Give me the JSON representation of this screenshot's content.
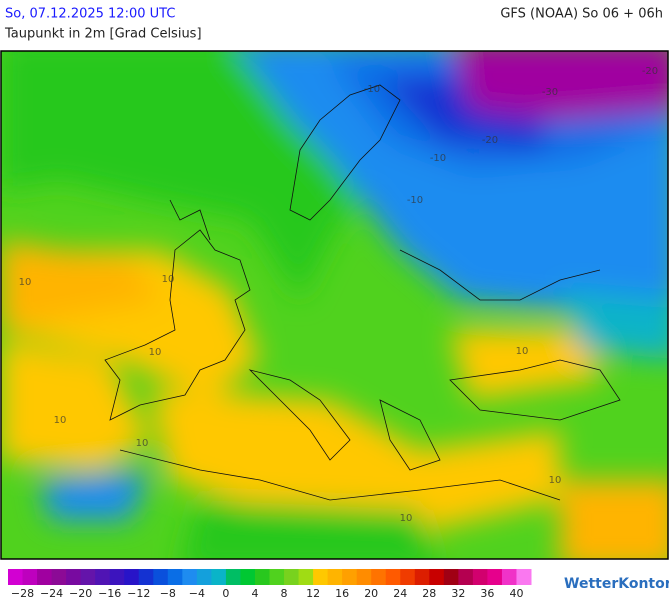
{
  "header": {
    "title_left": "So, 07.12.2025 12:00 UTC",
    "title_right": "GFS (NOAA) So 06 + 06h",
    "subtitle": "Taupunkt in 2m [Grad Celsius]"
  },
  "map": {
    "contour_labels": [
      -20,
      -30,
      -20,
      -10,
      -10,
      -10,
      10,
      10,
      10,
      10,
      10,
      10,
      10,
      10
    ]
  },
  "colorbar": {
    "range": [
      -30,
      42
    ],
    "ticks": [
      {
        "value": -28,
        "label": "−28"
      },
      {
        "value": -24,
        "label": "−24"
      },
      {
        "value": -20,
        "label": "−20"
      },
      {
        "value": -16,
        "label": "−16"
      },
      {
        "value": -12,
        "label": "−12"
      },
      {
        "value": -8,
        "label": "−8"
      },
      {
        "value": -4,
        "label": "−4"
      },
      0,
      4,
      8,
      12,
      16,
      20,
      24,
      28,
      32,
      36,
      40
    ],
    "colors": [
      "#d200d2",
      "#be00be",
      "#a000a0",
      "#8c0a96",
      "#780aa0",
      "#6414aa",
      "#5014b4",
      "#3c14be",
      "#2814c8",
      "#1432d2",
      "#0a50dc",
      "#0a6ee6",
      "#1e8cf0",
      "#14a0dc",
      "#0ab4c8",
      "#00be64",
      "#00c832",
      "#28c81e",
      "#50d21e",
      "#78d21e",
      "#a0dc14",
      "#ffc800",
      "#ffb400",
      "#ffa000",
      "#ff8c00",
      "#ff7300",
      "#ff5a00",
      "#f03c00",
      "#dc1e00",
      "#c80000",
      "#a00014",
      "#b40050",
      "#d2006e",
      "#e6008c",
      "#f032c8",
      "#fa78f0"
    ]
  },
  "logo": "WetterKontor"
}
